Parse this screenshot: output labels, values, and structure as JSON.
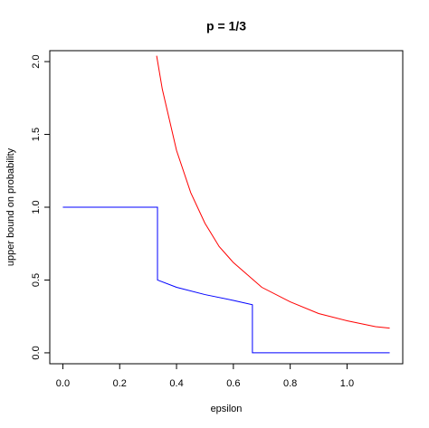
{
  "chart_data": {
    "type": "line",
    "title": "p = 1/3",
    "x_label": "epsilon",
    "y_label": "upper bound on probability",
    "series": [
      {
        "color": "#ff0000",
        "x": [
          0.33,
          0.35,
          0.4,
          0.45,
          0.5,
          0.55,
          0.6,
          0.7,
          0.8,
          0.9,
          1.0,
          1.1,
          1.15
        ],
        "values": [
          2.04,
          1.81,
          1.39,
          1.1,
          0.89,
          0.73,
          0.62,
          0.45,
          0.35,
          0.27,
          0.22,
          0.18,
          0.17
        ]
      },
      {
        "color": "#0000ff",
        "x": [
          0,
          0.333,
          0.333,
          0.4,
          0.5,
          0.6,
          0.667,
          0.667,
          1.15
        ],
        "values": [
          1,
          1,
          0.5,
          0.45,
          0.4,
          0.36,
          0.33,
          0,
          0
        ]
      }
    ],
    "xlim": [
      -0.046,
      1.196
    ],
    "ylim": [
      -0.075,
      2.075
    ],
    "xticks": [
      {
        "value": 0,
        "label": "0.0"
      },
      0.2,
      0.4,
      0.6,
      0.8,
      {
        "value": 1,
        "label": "1.0"
      }
    ],
    "yticks": [
      {
        "value": 0,
        "label": "0.0"
      },
      0.5,
      {
        "value": 1,
        "label": "1.0"
      },
      1.5,
      {
        "value": 2,
        "label": "2.0"
      }
    ]
  }
}
